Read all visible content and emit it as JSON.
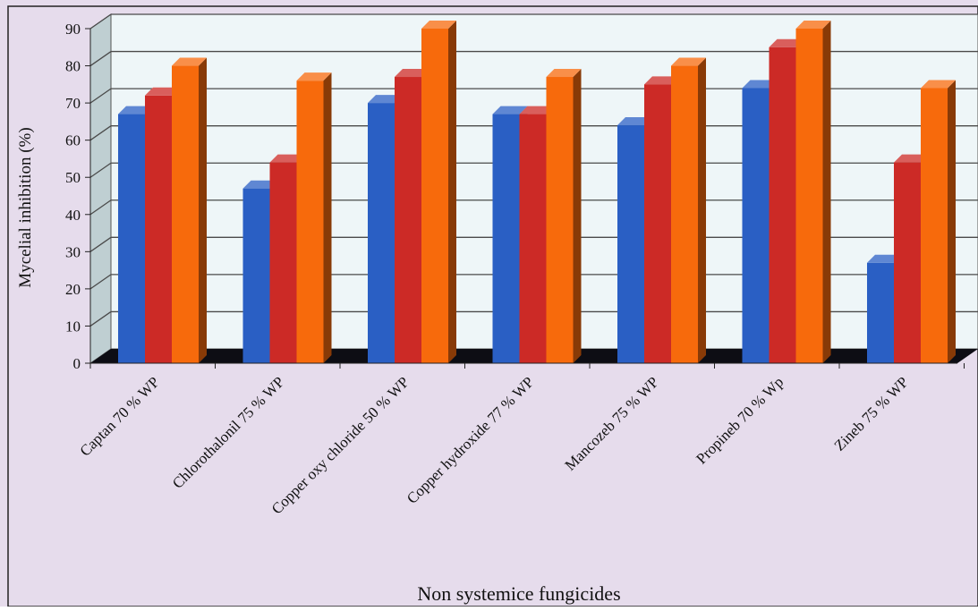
{
  "chart_data": {
    "type": "bar",
    "title": "",
    "xlabel": "Non systemice fungicides",
    "ylabel": "Mycelial inhibition (%)",
    "ylim": [
      0,
      90
    ],
    "y_ticks": [
      "0",
      "10",
      "20",
      "30",
      "40",
      "50",
      "60",
      "70",
      "80",
      "90"
    ],
    "grid": true,
    "legend": "none",
    "categories": [
      "Captan 70 % WP",
      "Chlorothalonil 75 % WP",
      "Copper oxy chloride 50 % WP",
      "Copper hydroxide 77 % WP",
      "Mancozeb 75 % WP",
      "Propineb 70 % Wp",
      "Zineb 75 % WP"
    ],
    "series": [
      {
        "color": "#2a5fc4",
        "values": [
          67,
          47,
          70,
          67,
          64,
          74,
          27
        ]
      },
      {
        "color": "#cc2a26",
        "values": [
          72,
          54,
          77,
          67,
          75,
          85,
          54
        ]
      },
      {
        "color": "#f76a0c",
        "values": [
          80,
          76,
          90,
          77,
          80,
          90,
          74
        ]
      }
    ],
    "colors": {
      "background": "#e6dcec",
      "plot_wall": "#eef6f8",
      "side_wall": "#bfcfd2",
      "floor": "#0d0d14",
      "grid": "#4a4a4a"
    }
  }
}
